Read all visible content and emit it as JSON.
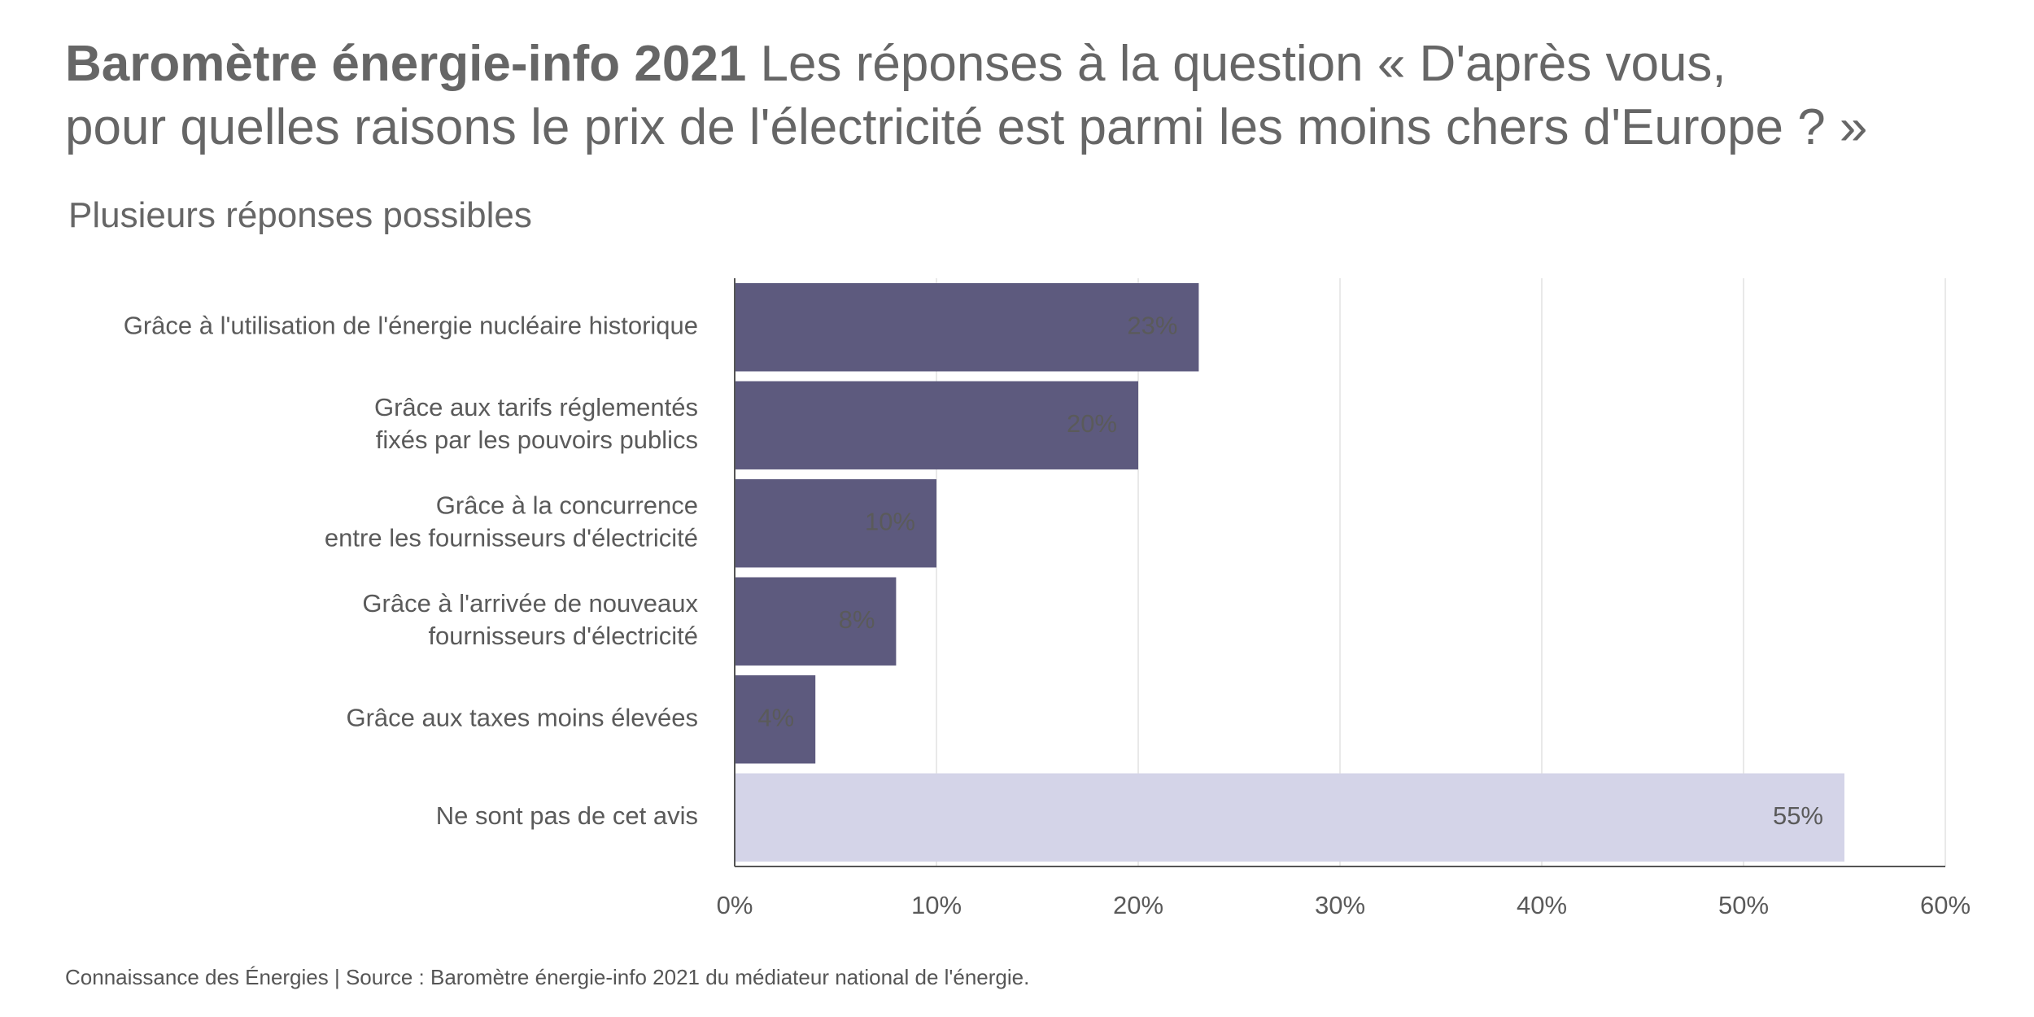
{
  "chart_data": {
    "type": "barh",
    "title": "Baromètre énergie-info 2021",
    "question": [
      "Les réponses à la question « D'après vous,",
      "pour quelles raisons le prix de l'électricité est parmi les moins chers d'Europe ? »"
    ],
    "subtitle": "Plusieurs réponses possibles",
    "source": "Connaissance des Énergies | Source : Baromètre énergie-info 2021 du médiateur national de l'énergie.",
    "categories": [
      [
        "Grâce à l'utilisation de l'énergie nucléaire historique"
      ],
      [
        "Grâce aux tarifs réglementés",
        "fixés par les pouvoirs publics"
      ],
      [
        "Grâce à la concurrence",
        "entre les fournisseurs d'électricité"
      ],
      [
        "Grâce à l'arrivée de nouveaux",
        "fournisseurs d'électricité"
      ],
      [
        "Grâce aux taxes moins élevées"
      ],
      [
        "Ne sont pas de cet avis"
      ]
    ],
    "values": [
      23,
      20,
      10,
      8,
      4,
      55
    ],
    "value_labels": [
      "23%",
      "20%",
      "10%",
      "8%",
      "4%",
      "55%"
    ],
    "colors": [
      "#5d5a7e",
      "#5d5a7e",
      "#5d5a7e",
      "#5d5a7e",
      "#5d5a7e",
      "#d4d4e8"
    ],
    "value_label_colors": [
      "#ffffff",
      "#ffffff",
      "#ffffff",
      "#ffffff",
      "#ffffff",
      "#666666"
    ],
    "xlim": [
      0,
      60
    ],
    "xticks": [
      {
        "value": 0,
        "label": "0%"
      },
      {
        "value": 10,
        "label": "10%"
      },
      {
        "value": 20,
        "label": "20%"
      },
      {
        "value": 30,
        "label": "30%"
      },
      {
        "value": 40,
        "label": "40%"
      },
      {
        "value": 50,
        "label": "50%"
      },
      {
        "value": 60,
        "label": "60%"
      }
    ],
    "grid": true
  }
}
